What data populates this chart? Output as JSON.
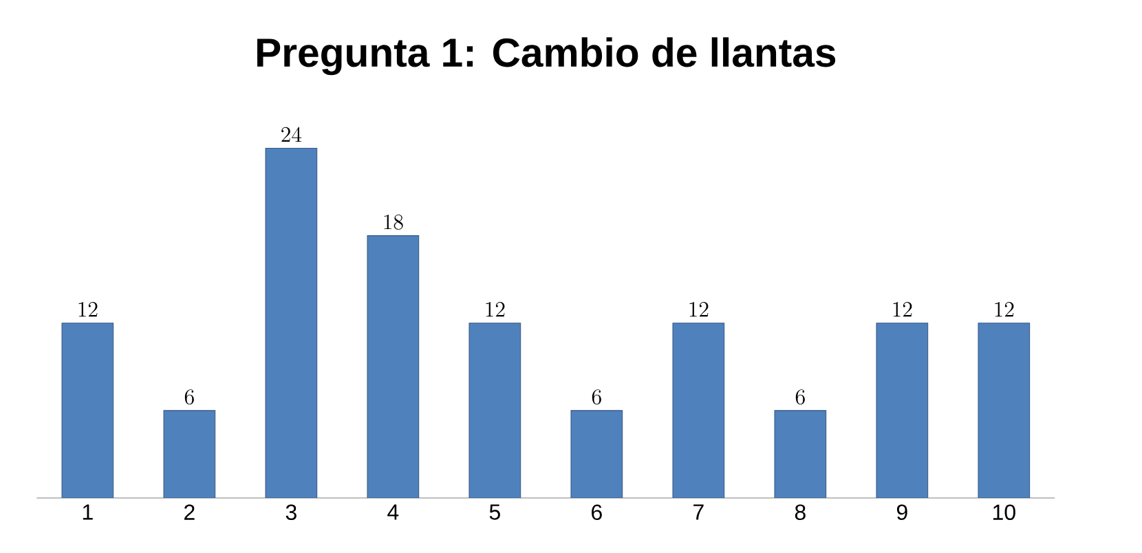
{
  "chart_data": {
    "type": "bar",
    "title": "Pregunta 1: Cambio de llantas",
    "categories": [
      "1",
      "2",
      "3",
      "4",
      "5",
      "6",
      "7",
      "8",
      "9",
      "10"
    ],
    "values": [
      12,
      6,
      24,
      18,
      12,
      6,
      12,
      6,
      12,
      12
    ],
    "color": "#4f81bd",
    "data_labels": true
  }
}
